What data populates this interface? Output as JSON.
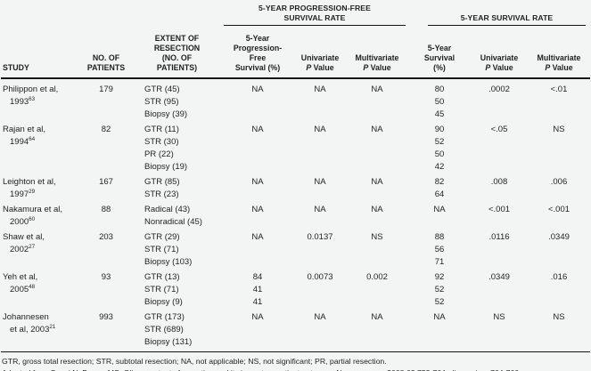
{
  "page": {
    "background": "#f3f5f4",
    "text_color": "#1f1f1f",
    "rule_color": "#161616"
  },
  "table": {
    "group_headers": {
      "progression_free": "5-YEAR PROGRESSION-FREE\nSURVIVAL RATE",
      "survival": "5-YEAR SURVIVAL RATE"
    },
    "column_headers": {
      "study": "STUDY",
      "patients": "NO. OF\nPATIENTS",
      "resection": "EXTENT OF\nRESECTION\n(NO. OF\nPATIENTS)",
      "pfs_percent": "5-Year\nProgression-\nFree\nSurvival (%)",
      "univariate": "Univariate",
      "multivariate": "Multivariate",
      "survival_percent": "5-Year\nSurvival\n(%)",
      "p_italic": "P",
      "value_word": "Value"
    },
    "rows": [
      {
        "study": [
          "Philippon et al,",
          "1993"
        ],
        "ref": "63",
        "patients": "179",
        "resection": [
          "GTR (45)",
          "STR (95)",
          "Biopsy (39)"
        ],
        "pfs": [
          "NA"
        ],
        "pfs_univariate": "NA",
        "pfs_multivariate": "NA",
        "survival": [
          "80",
          "50",
          "45"
        ],
        "survival_univariate": ".0002",
        "survival_multivariate": "<.01"
      },
      {
        "study": [
          "Rajan et al,",
          "1994"
        ],
        "ref": "64",
        "patients": "82",
        "resection": [
          "GTR (11)",
          "STR (30)",
          "PR (22)",
          "Biopsy (19)"
        ],
        "pfs": [
          "NA"
        ],
        "pfs_univariate": "NA",
        "pfs_multivariate": "NA",
        "survival": [
          "90",
          "52",
          "50",
          "42"
        ],
        "survival_univariate": "<.05",
        "survival_multivariate": "NS"
      },
      {
        "study": [
          "Leighton et al,",
          "1997"
        ],
        "ref": "29",
        "patients": "167",
        "resection": [
          "GTR (85)",
          "STR (23)"
        ],
        "pfs": [
          "NA"
        ],
        "pfs_univariate": "NA",
        "pfs_multivariate": "NA",
        "survival": [
          "82",
          "64"
        ],
        "survival_univariate": ".008",
        "survival_multivariate": ".006"
      },
      {
        "study": [
          "Nakamura et al,",
          "2000"
        ],
        "ref": "60",
        "patients": "88",
        "resection": [
          "Radical (43)",
          "Nonradical (45)"
        ],
        "pfs": [
          "NA"
        ],
        "pfs_univariate": "NA",
        "pfs_multivariate": "NA",
        "survival": [
          "NA"
        ],
        "survival_univariate": "<.001",
        "survival_multivariate": "<.001"
      },
      {
        "study": [
          "Shaw et al,",
          "2002"
        ],
        "ref": "27",
        "patients": "203",
        "resection": [
          "GTR (29)",
          "STR (71)",
          "Biopsy (103)"
        ],
        "pfs": [
          "NA"
        ],
        "pfs_univariate": "0.0137",
        "pfs_multivariate": "NS",
        "survival": [
          "88",
          "56",
          "71"
        ],
        "survival_univariate": ".0116",
        "survival_multivariate": ".0349"
      },
      {
        "study": [
          "Yeh et al,",
          "2005"
        ],
        "ref": "48",
        "patients": "93",
        "resection": [
          "GTR (13)",
          "STR (71)",
          "Biopsy (9)"
        ],
        "pfs": [
          "84",
          "41",
          "41"
        ],
        "pfs_univariate": "0.0073",
        "pfs_multivariate": "0.002",
        "survival": [
          "92",
          "52",
          "52"
        ],
        "survival_univariate": ".0349",
        "survival_multivariate": ".016"
      },
      {
        "study": [
          "Johannesen",
          "et al, 2003"
        ],
        "ref": "21",
        "patients": "993",
        "resection": [
          "GTR (173)",
          "STR (689)",
          "Biopsy (131)"
        ],
        "pfs": [
          "NA"
        ],
        "pfs_univariate": "NA",
        "pfs_multivariate": "NA",
        "survival": [
          "NA"
        ],
        "survival_univariate": "NS",
        "survival_multivariate": "NS"
      }
    ]
  },
  "footnotes": {
    "abbreviations": "GTR, gross total resection; STR, subtotal resection; NA, not applicable; NS, not significant; PR, partial resection.",
    "source_prefix": "Adapted from Sanai N, Berger MS. Glioma extent of resection and its impact on patient outcome. ",
    "source_journal": "Neurosurgery",
    "source_suffix": ". 2008;62:753-764; discussion, 764-766."
  }
}
